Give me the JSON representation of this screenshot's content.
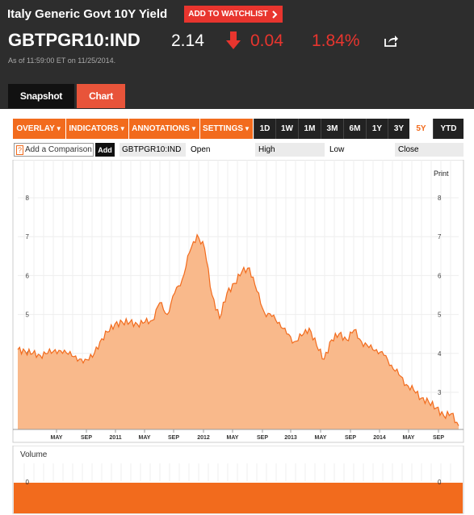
{
  "header": {
    "title": "Italy Generic Govt 10Y Yield",
    "watchlist_label": "ADD TO WATCHLIST",
    "ticker": "GBTPGR10:IND",
    "price": "2.14",
    "change": "0.04",
    "change_pct": "1.84%",
    "as_of": "As of 11:59:00 ET on 11/25/2014."
  },
  "tabs": {
    "snapshot": "Snapshot",
    "chart": "Chart"
  },
  "toolbar": {
    "overlay": "OVERLAY",
    "indicators": "INDICATORS",
    "annotations": "ANNOTATIONS",
    "settings": "SETTINGS",
    "ranges": [
      "1D",
      "1W",
      "1M",
      "3M",
      "6M",
      "1Y",
      "3Y",
      "5Y",
      "YTD"
    ],
    "active_range": "5Y"
  },
  "compare": {
    "placeholder": "Add a Comparison",
    "add_label": "Add",
    "symbol": "GBTPGR10:IND",
    "open": "Open",
    "high": "High",
    "low": "Low",
    "close": "Close"
  },
  "print_label": "Print",
  "volume_label": "Volume",
  "colors": {
    "accent": "#f26b1d",
    "header_bg": "#2d2d2d",
    "down": "#e8352e",
    "area_fill": "#f9b98b",
    "line": "#f26b1d"
  },
  "chart_data": {
    "type": "area",
    "y_ticks": [
      3,
      4,
      5,
      6,
      7,
      8
    ],
    "x_ticks": [
      "MAY",
      "SEP",
      "2011",
      "MAY",
      "SEP",
      "2012",
      "MAY",
      "SEP",
      "2013",
      "MAY",
      "SEP",
      "2014",
      "MAY",
      "SEP"
    ],
    "ylim": [
      2,
      8.5
    ],
    "series": [
      {
        "x": [
          "2009-12",
          "2010-01",
          "2010-02",
          "2010-03",
          "2010-04",
          "2010-05",
          "2010-06",
          "2010-07",
          "2010-08",
          "2010-09",
          "2010-10",
          "2010-11",
          "2010-12",
          "2011-01",
          "2011-02",
          "2011-03",
          "2011-04",
          "2011-05",
          "2011-06",
          "2011-07",
          "2011-08",
          "2011-09",
          "2011-10",
          "2011-11",
          "2011-12",
          "2012-01",
          "2012-02",
          "2012-03",
          "2012-04",
          "2012-05",
          "2012-06",
          "2012-07",
          "2012-08",
          "2012-09",
          "2012-10",
          "2012-11",
          "2012-12",
          "2013-01",
          "2013-02",
          "2013-03",
          "2013-04",
          "2013-05",
          "2013-06",
          "2013-07",
          "2013-08",
          "2013-09",
          "2013-10",
          "2013-11",
          "2013-12",
          "2014-01",
          "2014-02",
          "2014-03",
          "2014-04",
          "2014-05",
          "2014-06",
          "2014-07",
          "2014-08",
          "2014-09",
          "2014-10",
          "2014-11"
        ],
        "values": [
          4.1,
          4.05,
          4.0,
          3.95,
          4.0,
          4.1,
          4.0,
          4.05,
          3.8,
          3.85,
          3.9,
          4.3,
          4.55,
          4.75,
          4.8,
          4.8,
          4.75,
          4.8,
          4.85,
          5.3,
          5.0,
          5.55,
          5.9,
          6.6,
          7.05,
          6.7,
          5.5,
          4.9,
          5.55,
          5.8,
          6.1,
          6.2,
          5.6,
          5.05,
          4.95,
          4.8,
          4.5,
          4.3,
          4.45,
          4.65,
          4.2,
          3.85,
          4.35,
          4.5,
          4.35,
          4.6,
          4.3,
          4.15,
          4.1,
          3.95,
          3.7,
          3.45,
          3.2,
          3.05,
          2.85,
          2.75,
          2.6,
          2.4,
          2.45,
          2.14
        ]
      }
    ]
  },
  "volume_data": {
    "y_tick": "0"
  }
}
